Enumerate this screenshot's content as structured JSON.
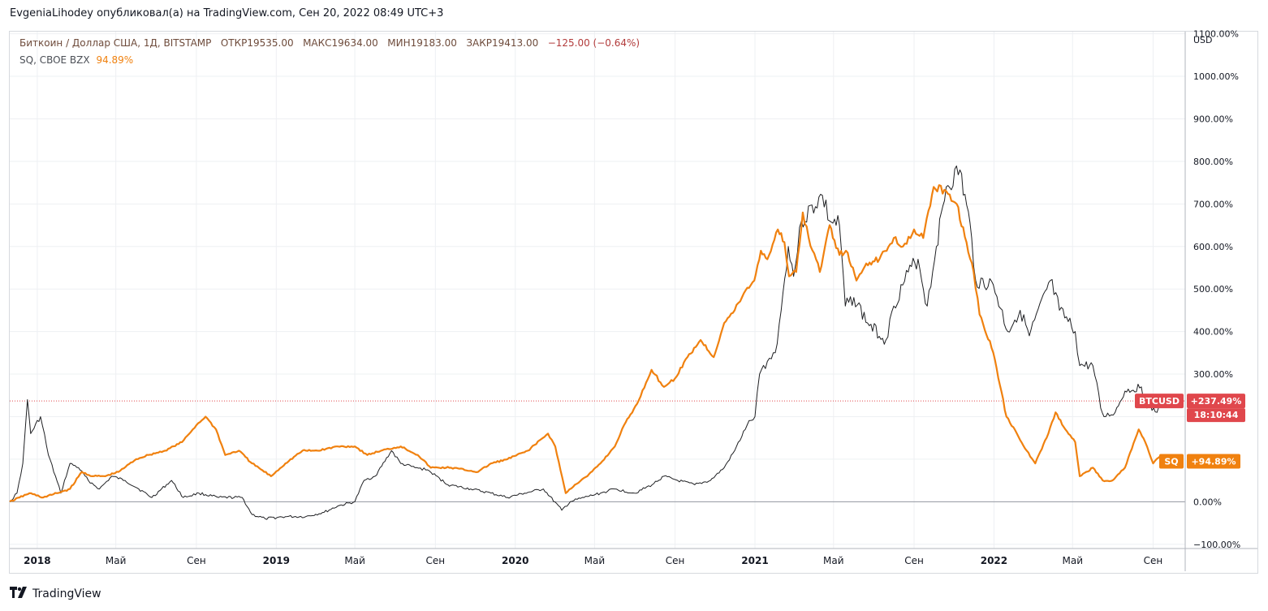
{
  "header": {
    "published_by": "EvgeniaLihodey опубликовал(а) на TradingView.com, Сен 20, 2022 08:49 UTC+3"
  },
  "legend": {
    "main_symbol": "Биткоин / Доллар США, 1Д, BITSTAMP",
    "open": "ОТКР19535.00",
    "high": "МАКС19634.00",
    "low": "МИН19183.00",
    "close": "ЗАКР19413.00",
    "change": "−125.00 (−0.64%)",
    "compare_symbol": "SQ, CBOE BZX",
    "compare_value": "94.89%"
  },
  "footer": {
    "brand": "TradingView",
    "logo": "tradingview-logo"
  },
  "colors": {
    "btc": "#1e1f22",
    "sq": "#f0810f",
    "btc_badge": "#e0474c",
    "sq_badge": "#f0810f",
    "grid": "#eef0f3"
  },
  "chart_data": {
    "type": "line",
    "yunit": "USD",
    "ylabel": "",
    "ylim": [
      -110,
      1105
    ],
    "ylabels": [
      "1100.00%",
      "1000.00%",
      "900.00%",
      "800.00%",
      "700.00%",
      "600.00%",
      "500.00%",
      "400.00%",
      "300.00%",
      "200.00%",
      "100.00%",
      "0.00%",
      "−100.00%"
    ],
    "yticks": [
      1100,
      1000,
      900,
      800,
      700,
      600,
      500,
      400,
      300,
      200,
      100,
      0,
      -100
    ],
    "xlim": [
      "2017-11-20",
      "2022-10-20"
    ],
    "xticks": [
      {
        "date": "2018-01-01",
        "label": "2018",
        "bold": true
      },
      {
        "date": "2018-05-01",
        "label": "Май",
        "bold": false
      },
      {
        "date": "2018-09-01",
        "label": "Сен",
        "bold": false
      },
      {
        "date": "2019-01-01",
        "label": "2019",
        "bold": true
      },
      {
        "date": "2019-05-01",
        "label": "Май",
        "bold": false
      },
      {
        "date": "2019-09-01",
        "label": "Сен",
        "bold": false
      },
      {
        "date": "2020-01-01",
        "label": "2020",
        "bold": true
      },
      {
        "date": "2020-05-01",
        "label": "Май",
        "bold": false
      },
      {
        "date": "2020-09-01",
        "label": "Сен",
        "bold": false
      },
      {
        "date": "2021-01-01",
        "label": "2021",
        "bold": true
      },
      {
        "date": "2021-05-01",
        "label": "Май",
        "bold": false
      },
      {
        "date": "2021-09-01",
        "label": "Сен",
        "bold": false
      },
      {
        "date": "2022-01-01",
        "label": "2022",
        "bold": true
      },
      {
        "date": "2022-05-01",
        "label": "Май",
        "bold": false
      },
      {
        "date": "2022-09-01",
        "label": "Сен",
        "bold": false
      }
    ],
    "badges": {
      "btc_name": "BTCUSD",
      "btc_value": "+237.49%",
      "btc_time": "18:10:44",
      "sq_name": "SQ",
      "sq_value": "+94.89%"
    },
    "series": [
      {
        "name": "BTCUSD",
        "color": "#1e1f22",
        "points": [
          [
            "2017-11-20",
            0
          ],
          [
            "2017-12-01",
            20
          ],
          [
            "2017-12-10",
            90
          ],
          [
            "2017-12-17",
            240
          ],
          [
            "2017-12-22",
            160
          ],
          [
            "2018-01-06",
            200
          ],
          [
            "2018-01-18",
            110
          ],
          [
            "2018-02-06",
            20
          ],
          [
            "2018-02-20",
            90
          ],
          [
            "2018-03-05",
            80
          ],
          [
            "2018-03-20",
            50
          ],
          [
            "2018-04-06",
            30
          ],
          [
            "2018-04-25",
            60
          ],
          [
            "2018-05-15",
            50
          ],
          [
            "2018-06-05",
            30
          ],
          [
            "2018-06-25",
            10
          ],
          [
            "2018-07-25",
            50
          ],
          [
            "2018-08-12",
            10
          ],
          [
            "2018-09-05",
            20
          ],
          [
            "2018-10-05",
            10
          ],
          [
            "2018-11-10",
            10
          ],
          [
            "2018-11-25",
            -30
          ],
          [
            "2018-12-15",
            -40
          ],
          [
            "2019-01-15",
            -35
          ],
          [
            "2019-02-15",
            -35
          ],
          [
            "2019-03-15",
            -25
          ],
          [
            "2019-04-05",
            -10
          ],
          [
            "2019-05-01",
            0
          ],
          [
            "2019-05-15",
            50
          ],
          [
            "2019-06-01",
            60
          ],
          [
            "2019-06-26",
            120
          ],
          [
            "2019-07-10",
            90
          ],
          [
            "2019-08-01",
            80
          ],
          [
            "2019-08-20",
            75
          ],
          [
            "2019-09-20",
            40
          ],
          [
            "2019-10-25",
            30
          ],
          [
            "2019-11-25",
            20
          ],
          [
            "2019-12-20",
            10
          ],
          [
            "2020-01-15",
            20
          ],
          [
            "2020-02-13",
            30
          ],
          [
            "2020-03-12",
            -20
          ],
          [
            "2020-03-25",
            0
          ],
          [
            "2020-04-15",
            10
          ],
          [
            "2020-05-10",
            20
          ],
          [
            "2020-06-01",
            30
          ],
          [
            "2020-07-01",
            20
          ],
          [
            "2020-07-28",
            40
          ],
          [
            "2020-08-15",
            60
          ],
          [
            "2020-09-05",
            50
          ],
          [
            "2020-10-01",
            40
          ],
          [
            "2020-10-25",
            50
          ],
          [
            "2020-11-15",
            80
          ],
          [
            "2020-12-01",
            120
          ],
          [
            "2020-12-20",
            180
          ],
          [
            "2021-01-01",
            200
          ],
          [
            "2021-01-08",
            300
          ],
          [
            "2021-01-20",
            330
          ],
          [
            "2021-02-01",
            350
          ],
          [
            "2021-02-10",
            450
          ],
          [
            "2021-02-21",
            600
          ],
          [
            "2021-03-01",
            530
          ],
          [
            "2021-03-13",
            660
          ],
          [
            "2021-04-14",
            720
          ],
          [
            "2021-04-25",
            660
          ],
          [
            "2021-05-10",
            650
          ],
          [
            "2021-05-19",
            460
          ],
          [
            "2021-06-01",
            480
          ],
          [
            "2021-06-22",
            420
          ],
          [
            "2021-07-20",
            380
          ],
          [
            "2021-08-01",
            460
          ],
          [
            "2021-08-23",
            540
          ],
          [
            "2021-09-07",
            570
          ],
          [
            "2021-09-21",
            460
          ],
          [
            "2021-10-05",
            600
          ],
          [
            "2021-10-20",
            740
          ],
          [
            "2021-11-10",
            780
          ],
          [
            "2021-11-28",
            620
          ],
          [
            "2021-12-04",
            520
          ],
          [
            "2021-12-31",
            510
          ],
          [
            "2022-01-22",
            400
          ],
          [
            "2022-02-10",
            450
          ],
          [
            "2022-02-24",
            390
          ],
          [
            "2022-03-28",
            520
          ],
          [
            "2022-04-11",
            450
          ],
          [
            "2022-05-05",
            400
          ],
          [
            "2022-05-12",
            320
          ],
          [
            "2022-06-01",
            320
          ],
          [
            "2022-06-13",
            220
          ],
          [
            "2022-06-18",
            200
          ],
          [
            "2022-07-05",
            210
          ],
          [
            "2022-07-20",
            260
          ],
          [
            "2022-08-14",
            270
          ],
          [
            "2022-08-20",
            230
          ],
          [
            "2022-09-07",
            210
          ],
          [
            "2022-09-13",
            250
          ],
          [
            "2022-09-19",
            237
          ]
        ]
      },
      {
        "name": "SQ",
        "color": "#f0810f",
        "points": [
          [
            "2017-11-20",
            0
          ],
          [
            "2017-12-05",
            10
          ],
          [
            "2017-12-20",
            20
          ],
          [
            "2018-01-10",
            10
          ],
          [
            "2018-01-31",
            20
          ],
          [
            "2018-02-20",
            30
          ],
          [
            "2018-03-10",
            70
          ],
          [
            "2018-03-26",
            60
          ],
          [
            "2018-04-15",
            60
          ],
          [
            "2018-05-05",
            70
          ],
          [
            "2018-06-01",
            100
          ],
          [
            "2018-06-20",
            110
          ],
          [
            "2018-07-15",
            120
          ],
          [
            "2018-08-10",
            140
          ],
          [
            "2018-09-01",
            180
          ],
          [
            "2018-09-15",
            200
          ],
          [
            "2018-10-01",
            170
          ],
          [
            "2018-10-15",
            110
          ],
          [
            "2018-11-05",
            120
          ],
          [
            "2018-11-25",
            90
          ],
          [
            "2018-12-24",
            60
          ],
          [
            "2019-01-15",
            90
          ],
          [
            "2019-02-10",
            120
          ],
          [
            "2019-03-05",
            120
          ],
          [
            "2019-04-05",
            130
          ],
          [
            "2019-05-01",
            130
          ],
          [
            "2019-05-20",
            110
          ],
          [
            "2019-06-10",
            120
          ],
          [
            "2019-07-10",
            130
          ],
          [
            "2019-08-05",
            110
          ],
          [
            "2019-08-25",
            80
          ],
          [
            "2019-09-25",
            80
          ],
          [
            "2019-11-05",
            70
          ],
          [
            "2019-11-25",
            90
          ],
          [
            "2019-12-20",
            100
          ],
          [
            "2020-01-20",
            120
          ],
          [
            "2020-02-20",
            160
          ],
          [
            "2020-03-02",
            130
          ],
          [
            "2020-03-18",
            20
          ],
          [
            "2020-04-01",
            40
          ],
          [
            "2020-04-20",
            60
          ],
          [
            "2020-05-10",
            90
          ],
          [
            "2020-06-01",
            130
          ],
          [
            "2020-06-15",
            180
          ],
          [
            "2020-07-05",
            230
          ],
          [
            "2020-07-27",
            310
          ],
          [
            "2020-08-15",
            270
          ],
          [
            "2020-09-01",
            290
          ],
          [
            "2020-09-20",
            340
          ],
          [
            "2020-10-10",
            380
          ],
          [
            "2020-10-30",
            340
          ],
          [
            "2020-11-15",
            420
          ],
          [
            "2020-12-01",
            450
          ],
          [
            "2020-12-15",
            490
          ],
          [
            "2020-12-31",
            520
          ],
          [
            "2021-01-10",
            590
          ],
          [
            "2021-01-20",
            570
          ],
          [
            "2021-02-05",
            640
          ],
          [
            "2021-02-15",
            610
          ],
          [
            "2021-02-22",
            530
          ],
          [
            "2021-03-05",
            540
          ],
          [
            "2021-03-15",
            680
          ],
          [
            "2021-03-24",
            620
          ],
          [
            "2021-04-10",
            540
          ],
          [
            "2021-04-25",
            650
          ],
          [
            "2021-05-10",
            580
          ],
          [
            "2021-05-20",
            590
          ],
          [
            "2021-06-05",
            520
          ],
          [
            "2021-06-20",
            560
          ],
          [
            "2021-07-10",
            570
          ],
          [
            "2021-08-01",
            620
          ],
          [
            "2021-08-15",
            600
          ],
          [
            "2021-09-01",
            640
          ],
          [
            "2021-09-15",
            620
          ],
          [
            "2021-10-01",
            740
          ],
          [
            "2021-10-20",
            730
          ],
          [
            "2021-11-05",
            700
          ],
          [
            "2021-11-20",
            610
          ],
          [
            "2021-12-01",
            540
          ],
          [
            "2021-12-10",
            440
          ],
          [
            "2021-12-31",
            350
          ],
          [
            "2022-01-20",
            200
          ],
          [
            "2022-02-05",
            160
          ],
          [
            "2022-02-20",
            120
          ],
          [
            "2022-03-05",
            90
          ],
          [
            "2022-03-25",
            160
          ],
          [
            "2022-04-05",
            210
          ],
          [
            "2022-04-20",
            170
          ],
          [
            "2022-05-05",
            140
          ],
          [
            "2022-05-12",
            60
          ],
          [
            "2022-06-01",
            80
          ],
          [
            "2022-06-16",
            50
          ],
          [
            "2022-07-01",
            50
          ],
          [
            "2022-07-20",
            80
          ],
          [
            "2022-08-10",
            170
          ],
          [
            "2022-08-20",
            140
          ],
          [
            "2022-09-01",
            90
          ],
          [
            "2022-09-13",
            110
          ],
          [
            "2022-09-19",
            95
          ]
        ]
      }
    ]
  }
}
